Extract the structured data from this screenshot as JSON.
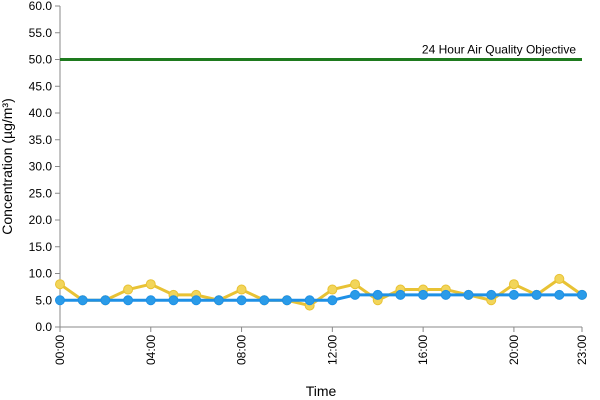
{
  "chart_data": {
    "type": "line",
    "title": "",
    "xlabel": "Time",
    "ylabel": "Concentration (µg/m³)",
    "ylim": [
      0,
      60
    ],
    "yticks": [
      "0.0",
      "5.0",
      "10.0",
      "15.0",
      "20.0",
      "25.0",
      "30.0",
      "35.0",
      "40.0",
      "45.0",
      "50.0",
      "55.0",
      "60.0"
    ],
    "x": [
      0,
      1,
      2,
      3,
      4,
      5,
      6,
      7,
      8,
      9,
      10,
      11,
      12,
      13,
      14,
      15,
      16,
      17,
      18,
      19,
      20,
      21,
      22,
      23
    ],
    "xticks": [
      {
        "x": 0,
        "label": "00:00"
      },
      {
        "x": 4,
        "label": "04:00"
      },
      {
        "x": 8,
        "label": "08:00"
      },
      {
        "x": 12,
        "label": "12:00"
      },
      {
        "x": 16,
        "label": "16:00"
      },
      {
        "x": 20,
        "label": "20:00"
      },
      {
        "x": 23,
        "label": "23:00"
      }
    ],
    "series": [
      {
        "color": "#e8c234",
        "marker_fill": "#f2d55a",
        "values": [
          8,
          5,
          5,
          7,
          8,
          6,
          6,
          5,
          7,
          5,
          5,
          4,
          7,
          8,
          5,
          7,
          7,
          7,
          6,
          5,
          8,
          6,
          9,
          6
        ]
      },
      {
        "color": "#1e90e6",
        "marker_fill": "#2a9be8",
        "values": [
          5,
          5,
          5,
          5,
          5,
          5,
          5,
          5,
          5,
          5,
          5,
          5,
          5,
          6,
          6,
          6,
          6,
          6,
          6,
          6,
          6,
          6,
          6,
          6
        ]
      }
    ],
    "reference_line": {
      "label": "24 Hour Air Quality Objective",
      "value": 50,
      "color": "#1e7a1e"
    },
    "grid": false,
    "legend": "none"
  }
}
